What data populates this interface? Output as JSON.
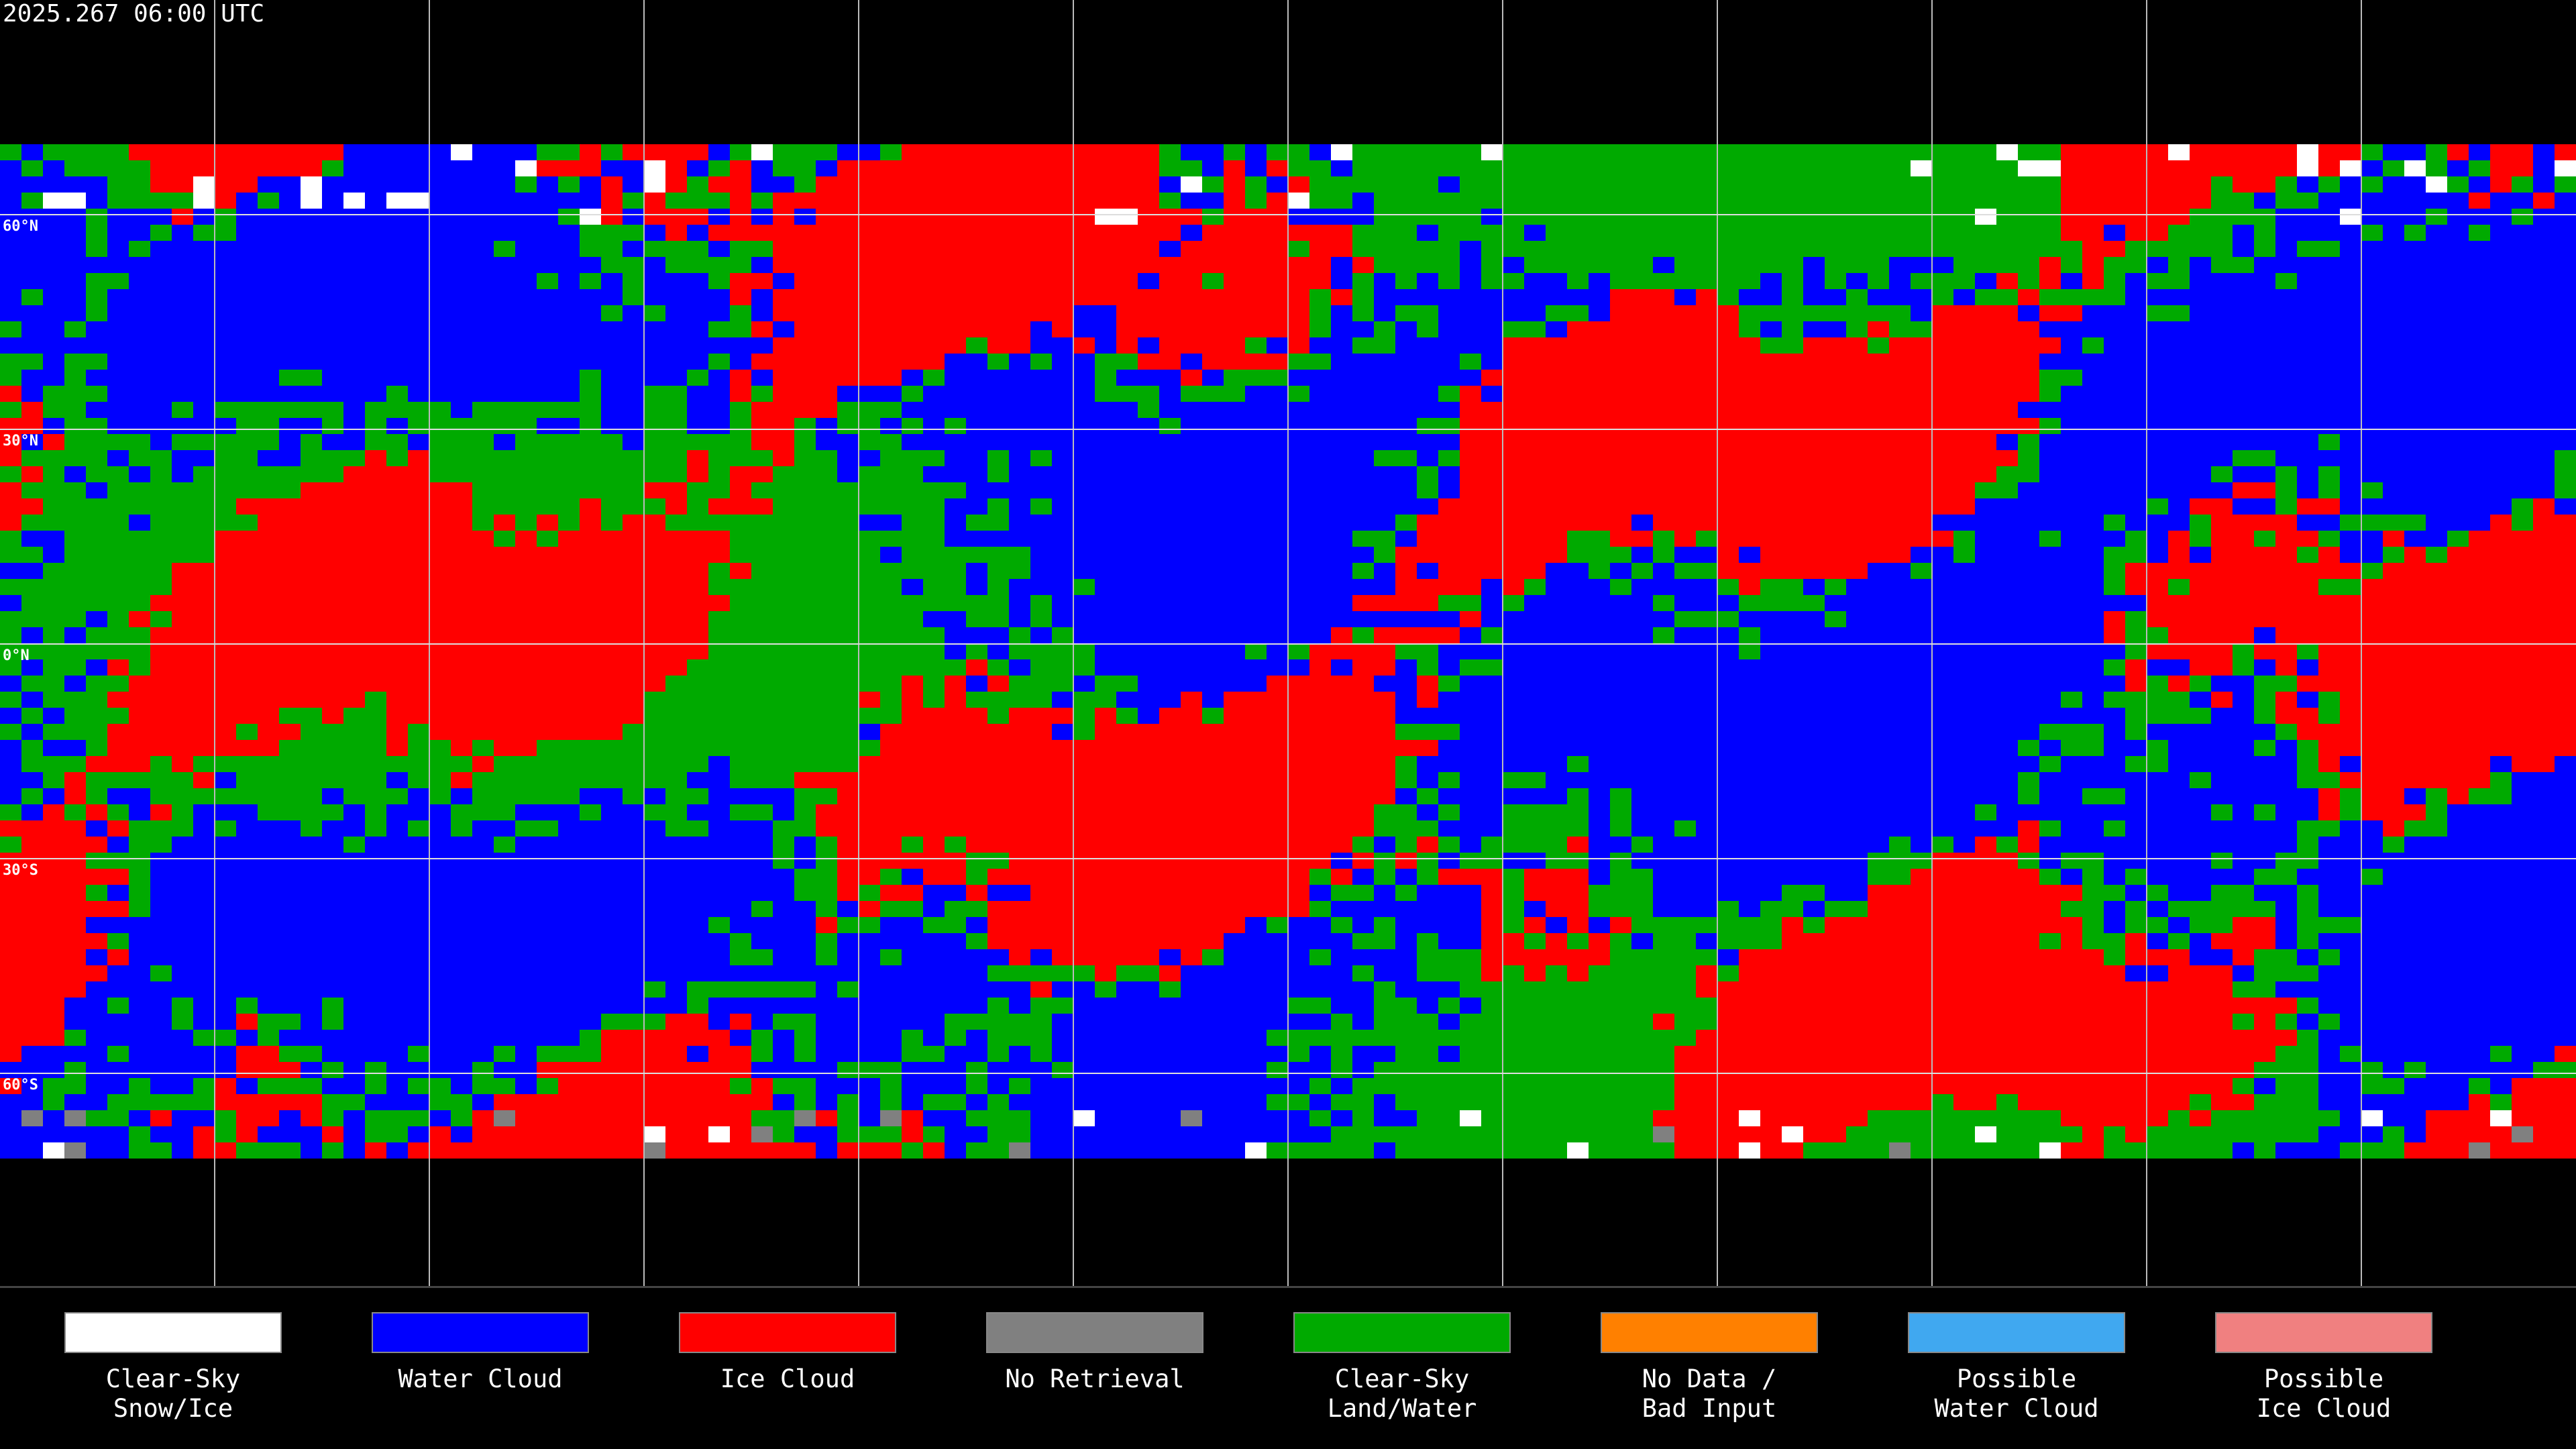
{
  "title": "2025.267 06:00 UTC",
  "lat_labels": [
    "60°N",
    "30°N",
    "0°N",
    "30°S",
    "60°S"
  ],
  "legend": [
    {
      "label": [
        "Clear-Sky",
        "Snow/Ice"
      ],
      "color": "#ffffff"
    },
    {
      "label": [
        "Water Cloud"
      ],
      "color": "#0000ff"
    },
    {
      "label": [
        "Ice Cloud"
      ],
      "color": "#ff0000"
    },
    {
      "label": [
        "No Retrieval"
      ],
      "color": "#808080"
    },
    {
      "label": [
        "Clear-Sky",
        "Land/Water"
      ],
      "color": "#00aa00"
    },
    {
      "label": [
        "No Data /",
        "Bad Input"
      ],
      "color": "#ff8000"
    },
    {
      "label": [
        "Possible",
        "Water Cloud"
      ],
      "color": "#40a8f0"
    },
    {
      "label": [
        "Possible",
        "Ice Cloud"
      ],
      "color": "#f08080"
    }
  ]
}
